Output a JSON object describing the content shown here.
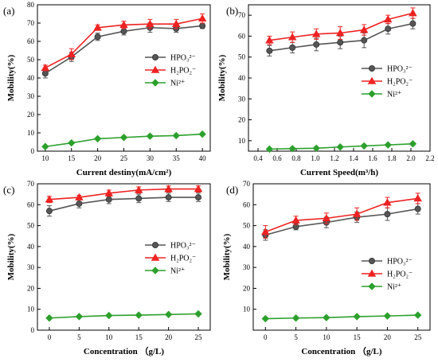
{
  "colors": {
    "HPO3": "#555555",
    "H2PO2": "#ee2222",
    "Ni": "#2ca02c",
    "axis": "#000000"
  },
  "chart_data": [
    {
      "panel_label": "(a)",
      "type": "line",
      "xlabel": "Current destiny(mA/cm²)",
      "ylabel": "Mobility(%)",
      "xlim": [
        8.5,
        41.5
      ],
      "ylim": [
        0,
        80
      ],
      "xticks": [
        10,
        15,
        20,
        25,
        30,
        35,
        40
      ],
      "yticks": [
        0,
        10,
        20,
        30,
        40,
        50,
        60,
        70,
        80
      ],
      "legend_position": "center-right",
      "x": [
        10,
        15,
        20,
        25,
        30,
        35,
        40
      ],
      "series": [
        {
          "name": "HPO₃²⁻",
          "marker": "circle",
          "values": [
            42.5,
            51.5,
            62.5,
            65.5,
            67.5,
            67.0,
            68.5
          ],
          "errors": [
            2.5,
            2.5,
            2.0,
            2.0,
            2.5,
            2.0,
            1.5
          ]
        },
        {
          "name": "H₂PO₂⁻",
          "marker": "triangle",
          "values": [
            45.5,
            53.0,
            67.5,
            69.0,
            69.5,
            69.5,
            72.5
          ],
          "errors": [
            1.5,
            3.0,
            1.5,
            2.0,
            2.5,
            2.5,
            2.5
          ]
        },
        {
          "name": "Ni²⁺",
          "marker": "diamond",
          "values": [
            2.5,
            4.5,
            6.8,
            7.5,
            8.2,
            8.5,
            9.3
          ],
          "errors": [
            0,
            0,
            0,
            0,
            0,
            0,
            0
          ]
        }
      ]
    },
    {
      "panel_label": "(b)",
      "type": "line",
      "xlabel": "Current Speed(m³/h)",
      "ylabel": "Mobility(%)",
      "xlim": [
        0.3,
        2.2
      ],
      "ylim": [
        5,
        75
      ],
      "xticks": [
        0.4,
        0.6,
        0.8,
        1.0,
        1.2,
        1.4,
        1.6,
        1.8,
        2.0,
        2.2
      ],
      "yticks": [
        10,
        20,
        30,
        40,
        50,
        60,
        70
      ],
      "legend_position": "center-right",
      "x": [
        0.52,
        0.76,
        1.01,
        1.26,
        1.51,
        1.76,
        2.02
      ],
      "series": [
        {
          "name": "HPO₃²⁻",
          "marker": "circle",
          "values": [
            53.0,
            54.5,
            56.0,
            57.0,
            58.0,
            63.5,
            66.0
          ],
          "errors": [
            2.5,
            2.5,
            3.0,
            3.0,
            3.5,
            2.5,
            2.5
          ]
        },
        {
          "name": "H₂PO₂⁻",
          "marker": "triangle",
          "values": [
            58.0,
            59.5,
            61.0,
            61.5,
            63.0,
            68.0,
            71.0
          ],
          "errors": [
            2.0,
            2.5,
            2.5,
            3.0,
            2.5,
            2.0,
            2.5
          ]
        },
        {
          "name": "Ni²⁺",
          "marker": "diamond",
          "values": [
            6.0,
            6.2,
            6.4,
            7.0,
            7.5,
            8.0,
            8.5
          ],
          "errors": [
            0,
            0,
            0,
            0,
            0,
            0,
            0
          ]
        }
      ]
    },
    {
      "panel_label": "(c)",
      "type": "line",
      "xlabel": "Concentration （g/L)",
      "ylabel": "Mobility(%)",
      "xlim": [
        -2,
        27
      ],
      "ylim": [
        0,
        70
      ],
      "xticks": [
        0,
        5,
        10,
        15,
        20,
        25
      ],
      "yticks": [
        0,
        10,
        20,
        30,
        40,
        50,
        60,
        70
      ],
      "legend_position": "center-right",
      "x": [
        0,
        5,
        10,
        15,
        20,
        25
      ],
      "series": [
        {
          "name": "HPO₃²⁻",
          "marker": "circle",
          "values": [
            57.0,
            60.5,
            62.5,
            63.0,
            63.5,
            63.5
          ],
          "errors": [
            2.5,
            2.0,
            2.0,
            2.0,
            2.0,
            2.0
          ]
        },
        {
          "name": "H₂PO₂⁻",
          "marker": "triangle",
          "values": [
            62.5,
            63.5,
            65.5,
            67.0,
            67.5,
            67.5
          ],
          "errors": [
            1.5,
            1.0,
            1.5,
            1.5,
            1.5,
            1.5
          ]
        },
        {
          "name": "Ni²⁺",
          "marker": "diamond",
          "values": [
            5.8,
            6.5,
            7.0,
            7.2,
            7.5,
            7.8
          ],
          "errors": [
            0,
            0,
            0,
            0,
            0,
            0
          ]
        }
      ]
    },
    {
      "panel_label": "(d)",
      "type": "line",
      "xlabel": "Concentration （g/L)",
      "ylabel": "Mobility(%)",
      "xlim": [
        -2,
        27
      ],
      "ylim": [
        0,
        70
      ],
      "xticks": [
        0,
        5,
        10,
        15,
        20,
        25
      ],
      "yticks": [
        10,
        20,
        30,
        40,
        50,
        60,
        70
      ],
      "legend_position": "center-right",
      "x": [
        0,
        5,
        10,
        15,
        20,
        25
      ],
      "series": [
        {
          "name": "HPO₃²⁻",
          "marker": "circle",
          "values": [
            45.5,
            49.5,
            51.5,
            54.0,
            55.5,
            58.0
          ],
          "errors": [
            2.5,
            1.5,
            2.5,
            2.5,
            3.0,
            2.5
          ]
        },
        {
          "name": "H₂PO₂⁻",
          "marker": "triangle",
          "values": [
            47.0,
            52.5,
            53.5,
            55.5,
            61.0,
            63.0
          ],
          "errors": [
            3.0,
            2.0,
            2.5,
            3.0,
            2.5,
            2.5
          ]
        },
        {
          "name": "Ni²⁺",
          "marker": "diamond",
          "values": [
            5.5,
            5.8,
            6.0,
            6.5,
            6.8,
            7.2
          ],
          "errors": [
            0,
            0,
            0,
            0,
            0,
            0
          ]
        }
      ]
    }
  ]
}
